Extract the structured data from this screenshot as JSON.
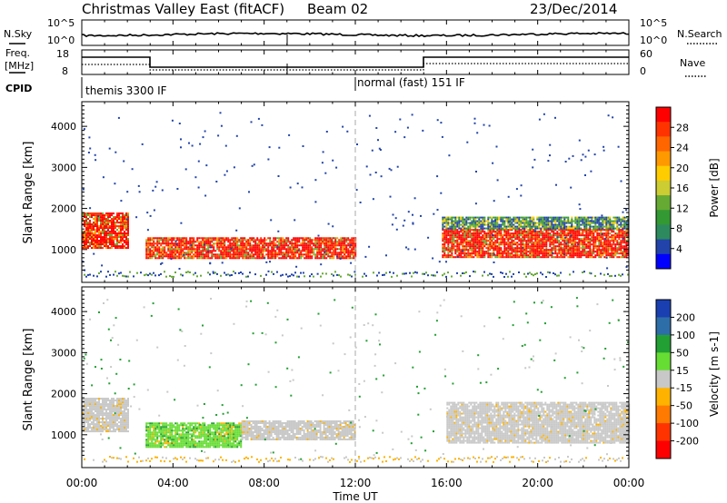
{
  "header": {
    "title": "Christmas Valley East (fitACF)",
    "beam": "Beam 02",
    "date": "23/Dec/2014"
  },
  "nsky_panel": {
    "left_label": "N.Sky",
    "left_ticks": [
      "10^5",
      "10^0"
    ],
    "right_label": "N.Search",
    "right_ticks": [
      "10^5",
      "10^0"
    ]
  },
  "freq_panel": {
    "left_label_1": "Freq.",
    "left_label_2": "[MHz]",
    "left_ticks": [
      "18",
      "8"
    ],
    "right_label": "Nave",
    "right_ticks": [
      "60",
      "0"
    ]
  },
  "cpid": {
    "label": "CPID",
    "mode_1": "themis 3300 IF",
    "mode_2": "normal (fast) 151 IF"
  },
  "power_colorbar": {
    "label": "Power [dB]",
    "ticks": [
      "28",
      "24",
      "20",
      "16",
      "12",
      "8",
      "4"
    ],
    "colors": [
      "#ff0000",
      "#ff3300",
      "#ff6600",
      "#ff9900",
      "#ffcc00",
      "#cccc33",
      "#66aa33",
      "#339933",
      "#2d8a5e",
      "#2244aa",
      "#0000ff"
    ]
  },
  "velocity_colorbar": {
    "label": "Velocity [m s-1]",
    "ticks": [
      "200",
      "100",
      "50",
      "15",
      "-15",
      "-50",
      "-100",
      "-200"
    ],
    "colors": [
      "#1a3fb0",
      "#2e6ea8",
      "#22a033",
      "#66dd33",
      "#c8c8c8",
      "#ffb300",
      "#ff7a00",
      "#ff3300",
      "#ff0000"
    ]
  },
  "chart_data": [
    {
      "type": "heatmap",
      "name": "power",
      "ylabel": "Slant Range [km]",
      "yticks": [
        1000,
        2000,
        3000,
        4000
      ],
      "ylim": [
        200,
        4600
      ],
      "x_range_hours": [
        0,
        24
      ],
      "regions": [
        {
          "t0": 0.0,
          "t1": 2.0,
          "r0": 1050,
          "r1": 1900,
          "level": "high"
        },
        {
          "t0": 2.8,
          "t1": 12.0,
          "r0": 800,
          "r1": 1300,
          "level": "high"
        },
        {
          "t0": 15.8,
          "t1": 24.0,
          "r0": 800,
          "r1": 1500,
          "level": "high"
        },
        {
          "t0": 15.8,
          "t1": 24.0,
          "r0": 1500,
          "r1": 1800,
          "level": "mid"
        }
      ]
    },
    {
      "type": "heatmap",
      "name": "velocity",
      "ylabel": "Slant Range [km]",
      "yticks": [
        1000,
        2000,
        3000,
        4000
      ],
      "ylim": [
        200,
        4600
      ],
      "x_range_hours": [
        0,
        24
      ],
      "regions": [
        {
          "t0": 0.0,
          "t1": 2.0,
          "r0": 1100,
          "r1": 1900,
          "level": "ground"
        },
        {
          "t0": 2.8,
          "t1": 7.0,
          "r0": 700,
          "r1": 1300,
          "level": "toward"
        },
        {
          "t0": 7.0,
          "t1": 12.0,
          "r0": 900,
          "r1": 1350,
          "level": "ground"
        },
        {
          "t0": 16.0,
          "t1": 24.0,
          "r0": 800,
          "r1": 1800,
          "level": "ground"
        }
      ]
    }
  ],
  "x_axis": {
    "label": "Time UT",
    "ticks": [
      "00:00",
      "04:00",
      "08:00",
      "12:00",
      "16:00",
      "20:00",
      "00:00"
    ]
  }
}
